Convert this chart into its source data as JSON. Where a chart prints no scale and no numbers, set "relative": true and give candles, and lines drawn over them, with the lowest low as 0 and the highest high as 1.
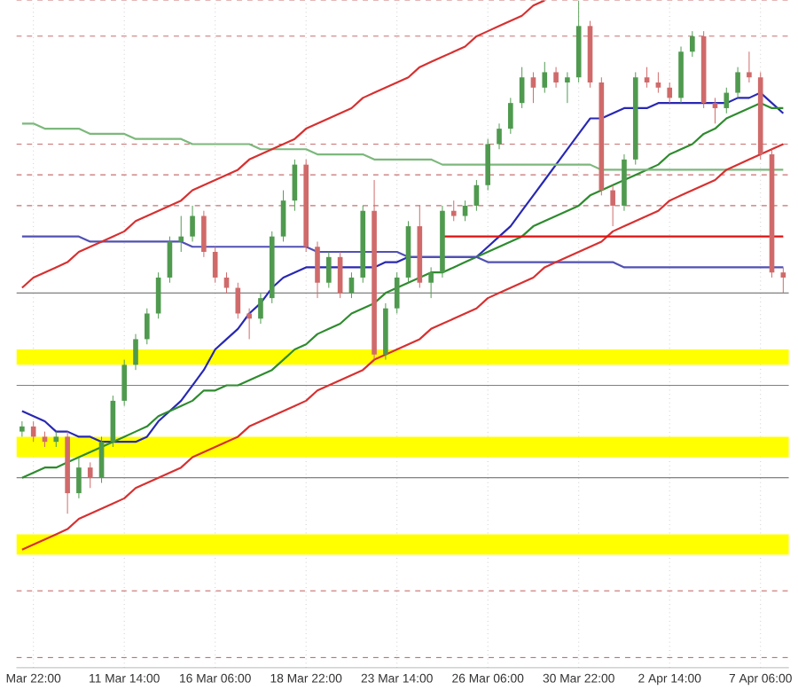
{
  "chart_data": {
    "type": "candlestick",
    "relative": true,
    "grid": "x",
    "categories": [
      null,
      "Mar 22:00",
      null,
      null,
      null,
      null,
      null,
      null,
      null,
      "11 Mar 14:00",
      null,
      null,
      null,
      null,
      null,
      null,
      null,
      "16 Mar 06:00",
      null,
      null,
      null,
      null,
      null,
      null,
      null,
      "18 Mar 22:00",
      null,
      null,
      null,
      null,
      null,
      null,
      null,
      "23 Mar 14:00",
      null,
      null,
      null,
      null,
      null,
      null,
      null,
      "26 Mar 06:00",
      null,
      null,
      null,
      null,
      null,
      null,
      null,
      "30 Mar 22:00",
      null,
      null,
      null,
      null,
      null,
      null,
      null,
      "2 Apr 14:00",
      null,
      null,
      null,
      null,
      null,
      null,
      null,
      "7 Apr 06:00",
      null,
      null
    ],
    "ohlc": [
      [
        0.16,
        0.18,
        0.15,
        0.17
      ],
      [
        0.17,
        0.18,
        0.14,
        0.15
      ],
      [
        0.15,
        0.16,
        0.13,
        0.14
      ],
      [
        0.14,
        0.16,
        0.13,
        0.15
      ],
      [
        0.15,
        0.16,
        0.0,
        0.04
      ],
      [
        0.04,
        0.11,
        0.03,
        0.09
      ],
      [
        0.09,
        0.1,
        0.05,
        0.07
      ],
      [
        0.07,
        0.15,
        0.06,
        0.14
      ],
      [
        0.14,
        0.23,
        0.13,
        0.22
      ],
      [
        0.22,
        0.3,
        0.21,
        0.29
      ],
      [
        0.29,
        0.35,
        0.28,
        0.34
      ],
      [
        0.34,
        0.4,
        0.33,
        0.39
      ],
      [
        0.39,
        0.47,
        0.38,
        0.46
      ],
      [
        0.46,
        0.54,
        0.45,
        0.53
      ],
      [
        0.53,
        0.58,
        0.51,
        0.54
      ],
      [
        0.54,
        0.6,
        0.53,
        0.58
      ],
      [
        0.58,
        0.59,
        0.5,
        0.51
      ],
      [
        0.51,
        0.52,
        0.45,
        0.46
      ],
      [
        0.46,
        0.47,
        0.43,
        0.44
      ],
      [
        0.44,
        0.45,
        0.38,
        0.39
      ],
      [
        0.39,
        0.4,
        0.34,
        0.38
      ],
      [
        0.38,
        0.43,
        0.37,
        0.42
      ],
      [
        0.42,
        0.55,
        0.41,
        0.54
      ],
      [
        0.54,
        0.63,
        0.53,
        0.61
      ],
      [
        0.61,
        0.69,
        0.59,
        0.68
      ],
      [
        0.68,
        0.69,
        0.51,
        0.52
      ],
      [
        0.52,
        0.53,
        0.42,
        0.45
      ],
      [
        0.45,
        0.51,
        0.44,
        0.5
      ],
      [
        0.5,
        0.51,
        0.42,
        0.43
      ],
      [
        0.43,
        0.47,
        0.42,
        0.46
      ],
      [
        0.46,
        0.6,
        0.45,
        0.59
      ],
      [
        0.59,
        0.65,
        0.3,
        0.31
      ],
      [
        0.31,
        0.41,
        0.3,
        0.4
      ],
      [
        0.4,
        0.47,
        0.39,
        0.46
      ],
      [
        0.46,
        0.57,
        0.45,
        0.56
      ],
      [
        0.56,
        0.6,
        0.44,
        0.45
      ],
      [
        0.45,
        0.48,
        0.42,
        0.47
      ],
      [
        0.47,
        0.6,
        0.46,
        0.59
      ],
      [
        0.59,
        0.61,
        0.57,
        0.58
      ],
      [
        0.58,
        0.61,
        0.57,
        0.6
      ],
      [
        0.6,
        0.65,
        0.59,
        0.64
      ],
      [
        0.64,
        0.73,
        0.63,
        0.72
      ],
      [
        0.72,
        0.76,
        0.71,
        0.75
      ],
      [
        0.75,
        0.81,
        0.74,
        0.8
      ],
      [
        0.8,
        0.87,
        0.79,
        0.85
      ],
      [
        0.85,
        0.86,
        0.8,
        0.83
      ],
      [
        0.83,
        0.88,
        0.82,
        0.86
      ],
      [
        0.86,
        0.87,
        0.83,
        0.84
      ],
      [
        0.84,
        0.86,
        0.8,
        0.85
      ],
      [
        0.85,
        1.0,
        0.84,
        0.95
      ],
      [
        0.95,
        0.96,
        0.83,
        0.84
      ],
      [
        0.84,
        0.85,
        0.62,
        0.63
      ],
      [
        0.63,
        0.64,
        0.56,
        0.6
      ],
      [
        0.6,
        0.7,
        0.59,
        0.69
      ],
      [
        0.69,
        0.86,
        0.68,
        0.85
      ],
      [
        0.85,
        0.87,
        0.83,
        0.84
      ],
      [
        0.84,
        0.86,
        0.82,
        0.83
      ],
      [
        0.83,
        0.84,
        0.8,
        0.81
      ],
      [
        0.81,
        0.91,
        0.8,
        0.9
      ],
      [
        0.9,
        0.94,
        0.89,
        0.93
      ],
      [
        0.93,
        0.94,
        0.79,
        0.8
      ],
      [
        0.8,
        0.81,
        0.76,
        0.79
      ],
      [
        0.79,
        0.83,
        0.78,
        0.82
      ],
      [
        0.82,
        0.87,
        0.81,
        0.86
      ],
      [
        0.86,
        0.9,
        0.84,
        0.85
      ],
      [
        0.85,
        0.86,
        0.69,
        0.7
      ],
      [
        0.7,
        0.71,
        0.46,
        0.47
      ],
      [
        0.47,
        0.48,
        0.43,
        0.46
      ]
    ],
    "series": [
      {
        "type": "line",
        "color": "#2828b4",
        "values": [
          0.2,
          0.19,
          0.18,
          0.16,
          0.16,
          0.15,
          0.15,
          0.14,
          0.14,
          0.14,
          0.14,
          0.15,
          0.18,
          0.2,
          0.22,
          0.25,
          0.28,
          0.32,
          0.34,
          0.36,
          0.39,
          0.41,
          0.44,
          0.46,
          0.47,
          0.48,
          0.48,
          0.48,
          0.48,
          0.48,
          0.48,
          0.48,
          0.49,
          0.49,
          0.5,
          0.5,
          0.5,
          0.5,
          0.5,
          0.5,
          0.5,
          0.52,
          0.54,
          0.56,
          0.59,
          0.62,
          0.65,
          0.68,
          0.71,
          0.74,
          0.77,
          0.77,
          0.78,
          0.79,
          0.79,
          0.79,
          0.8,
          0.8,
          0.8,
          0.8,
          0.8,
          0.8,
          0.8,
          0.81,
          0.81,
          0.82,
          0.8,
          0.78
        ]
      },
      {
        "type": "line",
        "color": "#2e8b2e",
        "values": [
          0.07,
          0.08,
          0.09,
          0.09,
          0.1,
          0.11,
          0.12,
          0.13,
          0.14,
          0.15,
          0.16,
          0.17,
          0.19,
          0.2,
          0.21,
          0.22,
          0.24,
          0.24,
          0.25,
          0.25,
          0.26,
          0.27,
          0.28,
          0.3,
          0.32,
          0.33,
          0.35,
          0.36,
          0.37,
          0.39,
          0.4,
          0.41,
          0.43,
          0.44,
          0.45,
          0.46,
          0.47,
          0.47,
          0.48,
          0.49,
          0.5,
          0.51,
          0.52,
          0.53,
          0.54,
          0.56,
          0.57,
          0.58,
          0.59,
          0.6,
          0.62,
          0.63,
          0.64,
          0.65,
          0.66,
          0.67,
          0.68,
          0.7,
          0.71,
          0.72,
          0.74,
          0.75,
          0.77,
          0.78,
          0.79,
          0.8,
          0.79,
          0.79
        ]
      },
      {
        "type": "line",
        "color": "#7cb87c",
        "values": [
          0.76,
          0.76,
          0.75,
          0.75,
          0.75,
          0.75,
          0.74,
          0.74,
          0.74,
          0.74,
          0.73,
          0.73,
          0.73,
          0.73,
          0.73,
          0.72,
          0.72,
          0.72,
          0.72,
          0.72,
          0.72,
          0.71,
          0.71,
          0.71,
          0.71,
          0.71,
          0.7,
          0.7,
          0.7,
          0.7,
          0.7,
          0.69,
          0.69,
          0.69,
          0.69,
          0.69,
          0.69,
          0.68,
          0.68,
          0.68,
          0.68,
          0.68,
          0.68,
          0.68,
          0.68,
          0.68,
          0.68,
          0.68,
          0.68,
          0.68,
          0.68,
          0.67,
          0.67,
          0.67,
          0.67,
          0.67,
          0.67,
          0.67,
          0.67,
          0.67,
          0.67,
          0.67,
          0.67,
          0.67,
          0.67,
          0.67,
          0.67,
          0.67
        ]
      },
      {
        "type": "line",
        "color": "#5050b4",
        "values": [
          0.54,
          0.54,
          0.54,
          0.54,
          0.54,
          0.54,
          0.53,
          0.53,
          0.53,
          0.53,
          0.53,
          0.53,
          0.53,
          0.53,
          0.53,
          0.52,
          0.52,
          0.52,
          0.52,
          0.52,
          0.52,
          0.52,
          0.52,
          0.52,
          0.52,
          0.52,
          0.51,
          0.51,
          0.51,
          0.51,
          0.51,
          0.51,
          0.51,
          0.51,
          0.5,
          0.5,
          0.5,
          0.5,
          0.5,
          0.5,
          0.5,
          0.49,
          0.49,
          0.49,
          0.49,
          0.49,
          0.49,
          0.49,
          0.49,
          0.49,
          0.49,
          0.49,
          0.49,
          0.48,
          0.48,
          0.48,
          0.48,
          0.48,
          0.48,
          0.48,
          0.48,
          0.48,
          0.48,
          0.48,
          0.48,
          0.48,
          0.48,
          0.48
        ]
      },
      {
        "type": "line",
        "color": "#d83030",
        "values": [
          0.44,
          0.46,
          0.47,
          0.48,
          0.49,
          0.51,
          0.52,
          0.53,
          0.54,
          0.55,
          0.57,
          0.58,
          0.59,
          0.6,
          0.61,
          0.63,
          0.64,
          0.65,
          0.66,
          0.67,
          0.69,
          0.7,
          0.71,
          0.72,
          0.73,
          0.75,
          0.76,
          0.77,
          0.78,
          0.79,
          0.81,
          0.82,
          0.83,
          0.84,
          0.85,
          0.87,
          0.88,
          0.89,
          0.9,
          0.91,
          0.93,
          0.94,
          0.95,
          0.96,
          0.97,
          0.99,
          1.0,
          null,
          null,
          null,
          null,
          null,
          null,
          null,
          null,
          null,
          null,
          null,
          null,
          null,
          null,
          null,
          null,
          null,
          null,
          null,
          null,
          null
        ]
      },
      {
        "type": "line",
        "color": "#d83030",
        "values": [
          -0.07,
          -0.06,
          -0.05,
          -0.04,
          -0.03,
          -0.01,
          0.0,
          0.01,
          0.02,
          0.03,
          0.05,
          0.06,
          0.07,
          0.08,
          0.09,
          0.11,
          0.12,
          0.13,
          0.14,
          0.15,
          0.17,
          0.18,
          0.19,
          0.2,
          0.21,
          0.22,
          0.24,
          0.25,
          0.26,
          0.27,
          0.28,
          0.3,
          0.31,
          0.32,
          0.33,
          0.34,
          0.36,
          0.37,
          0.38,
          0.39,
          0.4,
          0.42,
          0.43,
          0.44,
          0.45,
          0.46,
          0.48,
          0.49,
          0.5,
          0.51,
          0.52,
          0.53,
          0.55,
          0.56,
          0.57,
          0.58,
          0.59,
          0.61,
          0.62,
          0.63,
          0.64,
          0.65,
          0.67,
          0.68,
          0.69,
          0.7,
          0.71,
          0.72
        ]
      },
      {
        "type": "line",
        "color": "#e01010",
        "values": [
          null,
          null,
          null,
          null,
          null,
          null,
          null,
          null,
          null,
          null,
          null,
          null,
          null,
          null,
          null,
          null,
          null,
          null,
          null,
          null,
          null,
          null,
          null,
          null,
          null,
          null,
          null,
          null,
          null,
          null,
          null,
          null,
          null,
          null,
          null,
          null,
          null,
          0.54,
          0.54,
          0.54,
          0.54,
          0.54,
          0.54,
          0.54,
          0.54,
          0.54,
          0.54,
          0.54,
          0.54,
          0.54,
          0.54,
          0.54,
          0.54,
          0.54,
          0.54,
          0.54,
          0.54,
          0.54,
          0.54,
          0.54,
          0.54,
          0.54,
          0.54,
          0.54,
          0.54,
          0.54,
          0.54,
          0.54
        ]
      }
    ],
    "bands": [
      {
        "axis": "y",
        "from": 0.29,
        "to": 0.32,
        "color": "#ffff00"
      },
      {
        "axis": "y",
        "from": 0.11,
        "to": 0.15,
        "color": "#ffff00"
      },
      {
        "axis": "y",
        "from": -0.08,
        "to": -0.04,
        "color": "#ffff00"
      }
    ],
    "ref_lines": [
      {
        "axis": "y",
        "value": 1.0,
        "color": "#c87070",
        "line_style": "dashed"
      },
      {
        "axis": "y",
        "value": 0.93,
        "color": "#c87070",
        "line_style": "dashed"
      },
      {
        "axis": "y",
        "value": 0.72,
        "color": "#c87070",
        "line_style": "dashed"
      },
      {
        "axis": "y",
        "value": 0.66,
        "color": "#c87070",
        "line_style": "dashed"
      },
      {
        "axis": "y",
        "value": 0.6,
        "color": "#c87070",
        "line_style": "dashed"
      },
      {
        "axis": "y",
        "value": -0.15,
        "color": "#c87070",
        "line_style": "dashed"
      },
      {
        "axis": "y",
        "value": -0.28,
        "color": "#c87070",
        "line_style": "dashed"
      },
      {
        "axis": "y",
        "value": 0.43,
        "color": "#808080",
        "line_style": "solid"
      },
      {
        "axis": "y",
        "value": 0.25,
        "color": "#808080",
        "line_style": "solid"
      },
      {
        "axis": "y",
        "value": 0.07,
        "color": "#808080",
        "line_style": "solid"
      }
    ]
  }
}
